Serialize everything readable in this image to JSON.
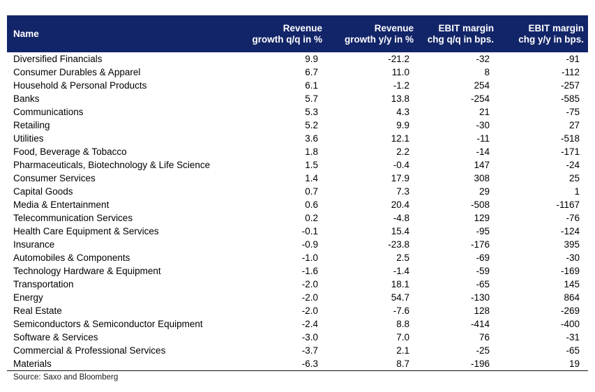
{
  "colors": {
    "header_bg": "#132569",
    "header_text": "#FFFFFF",
    "row_text": "#000000",
    "rule": "#111111"
  },
  "source_note": "Source: Saxo and Bloomberg",
  "chart_data": {
    "type": "table",
    "columns": [
      {
        "line1": "Name",
        "line2": "",
        "format": "text",
        "align": "left"
      },
      {
        "line1": "Revenue",
        "line2": "growth q/q in %",
        "format": "dec1",
        "align": "right"
      },
      {
        "line1": "Revenue",
        "line2": "growth y/y in %",
        "format": "dec1",
        "align": "right"
      },
      {
        "line1": "EBIT margin",
        "line2": "chg q/q in bps.",
        "format": "int",
        "align": "right"
      },
      {
        "line1": "EBIT margin",
        "line2": "chg y/y in bps.",
        "format": "int",
        "align": "right"
      }
    ],
    "rows": [
      [
        "Diversified Financials",
        9.9,
        -21.2,
        -32,
        -91
      ],
      [
        "Consumer Durables & Apparel",
        6.7,
        11.0,
        8,
        -112
      ],
      [
        "Household & Personal Products",
        6.1,
        -1.2,
        254,
        -257
      ],
      [
        "Banks",
        5.7,
        13.8,
        -254,
        -585
      ],
      [
        "Communications",
        5.3,
        4.3,
        21,
        -75
      ],
      [
        "Retailing",
        5.2,
        9.9,
        -30,
        27
      ],
      [
        "Utilities",
        3.6,
        12.1,
        -11,
        -518
      ],
      [
        "Food, Beverage & Tobacco",
        1.8,
        2.2,
        -14,
        -171
      ],
      [
        "Pharmaceuticals, Biotechnology & Life Science",
        1.5,
        -0.4,
        147,
        -24
      ],
      [
        "Consumer Services",
        1.4,
        17.9,
        308,
        25
      ],
      [
        "Capital Goods",
        0.7,
        7.3,
        29,
        1
      ],
      [
        "Media & Entertainment",
        0.6,
        20.4,
        -508,
        -1167
      ],
      [
        "Telecommunication Services",
        0.2,
        -4.8,
        129,
        -76
      ],
      [
        "Health Care Equipment & Services",
        -0.1,
        15.4,
        -95,
        -124
      ],
      [
        "Insurance",
        -0.9,
        -23.8,
        -176,
        395
      ],
      [
        "Automobiles & Components",
        -1.0,
        2.5,
        -69,
        -30
      ],
      [
        "Technology Hardware & Equipment",
        -1.6,
        -1.4,
        -59,
        -169
      ],
      [
        "Transportation",
        -2.0,
        18.1,
        -65,
        145
      ],
      [
        "Energy",
        -2.0,
        54.7,
        -130,
        864
      ],
      [
        "Real Estate",
        -2.0,
        -7.6,
        128,
        -269
      ],
      [
        "Semiconductors & Semiconductor Equipment",
        -2.4,
        8.8,
        -414,
        -400
      ],
      [
        "Software & Services",
        -3.0,
        7.0,
        76,
        -31
      ],
      [
        "Commercial & Professional Services",
        -3.7,
        2.1,
        -25,
        -65
      ],
      [
        "Materials",
        -6.3,
        8.7,
        -196,
        19
      ]
    ]
  }
}
